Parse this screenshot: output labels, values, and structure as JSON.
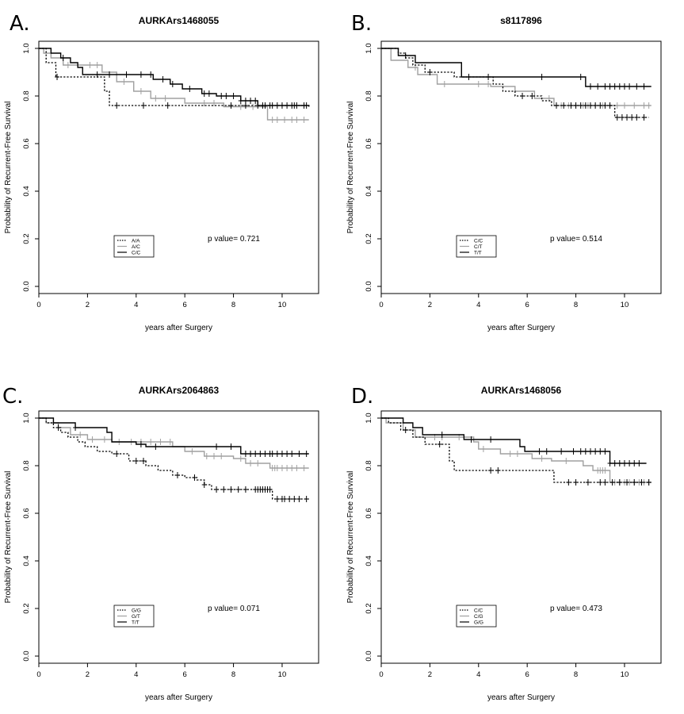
{
  "figure": {
    "ylabel": "Probability of Recurrent-Free Survival",
    "xlabel": "years after Surgery"
  },
  "chart_data": [
    {
      "panel": "A.",
      "type": "line",
      "title": "AURKArs1468055",
      "xlabel": "years after Surgery",
      "ylabel": "Probability of Recurrent-Free Survival",
      "xlim": [
        0,
        11.5
      ],
      "ylim": [
        -0.03,
        1.03
      ],
      "xticks": [
        0,
        2,
        4,
        6,
        8,
        10
      ],
      "yticks": [
        0.0,
        0.2,
        0.4,
        0.6,
        0.8,
        1.0
      ],
      "pvalue_text": "p value= 0.721",
      "legend": {
        "position": "bottom-left",
        "entries": [
          "A/A",
          "A/C",
          "C/C"
        ]
      },
      "series": [
        {
          "name": "A/A",
          "style": "dotted",
          "color": "#000000",
          "steps": [
            [
              0,
              1.0
            ],
            [
              0.3,
              0.94
            ],
            [
              0.7,
              0.88
            ],
            [
              2.7,
              0.82
            ],
            [
              2.9,
              0.76
            ],
            [
              11.1,
              0.755
            ]
          ],
          "censor": [
            0.75,
            3.2,
            4.3,
            5.3,
            7.9,
            8.5,
            10.5,
            11.0
          ]
        },
        {
          "name": "A/C",
          "style": "solid",
          "color": "#a0a0a0",
          "steps": [
            [
              0,
              1.0
            ],
            [
              0.2,
              0.98
            ],
            [
              0.5,
              0.96
            ],
            [
              1.0,
              0.93
            ],
            [
              2.6,
              0.9
            ],
            [
              3.2,
              0.86
            ],
            [
              3.9,
              0.82
            ],
            [
              4.6,
              0.79
            ],
            [
              6.0,
              0.77
            ],
            [
              7.6,
              0.755
            ],
            [
              9.4,
              0.7
            ],
            [
              11.1,
              0.7
            ]
          ],
          "censor": [
            1.2,
            2.1,
            2.4,
            3.5,
            4.2,
            4.8,
            5.2,
            6.8,
            7.2,
            8.3,
            8.8,
            9.6,
            9.8,
            10.1,
            10.4,
            10.6,
            10.9
          ]
        },
        {
          "name": "C/C",
          "style": "solid",
          "color": "#000000",
          "steps": [
            [
              0,
              1.0
            ],
            [
              0.5,
              0.98
            ],
            [
              0.9,
              0.96
            ],
            [
              1.3,
              0.94
            ],
            [
              1.6,
              0.92
            ],
            [
              1.8,
              0.89
            ],
            [
              4.7,
              0.87
            ],
            [
              5.4,
              0.85
            ],
            [
              5.9,
              0.83
            ],
            [
              6.7,
              0.81
            ],
            [
              7.3,
              0.8
            ],
            [
              8.3,
              0.78
            ],
            [
              9.0,
              0.76
            ],
            [
              11.1,
              0.755
            ]
          ],
          "censor": [
            1.0,
            2.4,
            2.9,
            3.6,
            4.2,
            4.6,
            5.1,
            5.5,
            6.2,
            6.8,
            7.0,
            7.5,
            7.7,
            8.0,
            8.3,
            8.5,
            8.7,
            8.9,
            9.0,
            9.2,
            9.3,
            9.5,
            9.6,
            9.8,
            10.0,
            10.2,
            10.4,
            10.6,
            10.9
          ]
        }
      ]
    },
    {
      "panel": "B.",
      "type": "line",
      "title": "s8117896",
      "xlabel": "years after Surgery",
      "ylabel": "Probability of Recurrent-Free Survival",
      "xlim": [
        0,
        11.5
      ],
      "ylim": [
        -0.03,
        1.03
      ],
      "xticks": [
        0,
        2,
        4,
        6,
        8,
        10
      ],
      "yticks": [
        0.0,
        0.2,
        0.4,
        0.6,
        0.8,
        1.0
      ],
      "pvalue_text": "p value= 0.514",
      "legend": {
        "position": "bottom-left",
        "entries": [
          "C/C",
          "C/T",
          "T/T"
        ]
      },
      "series": [
        {
          "name": "C/C",
          "style": "dotted",
          "color": "#000000",
          "steps": [
            [
              0,
              1.0
            ],
            [
              0.7,
              0.98
            ],
            [
              1.0,
              0.96
            ],
            [
              1.3,
              0.93
            ],
            [
              1.8,
              0.9
            ],
            [
              3.0,
              0.88
            ],
            [
              4.6,
              0.85
            ],
            [
              5.0,
              0.82
            ],
            [
              5.5,
              0.8
            ],
            [
              6.6,
              0.78
            ],
            [
              7.0,
              0.76
            ],
            [
              9.6,
              0.71
            ],
            [
              11.0,
              0.71
            ]
          ],
          "censor": [
            2.0,
            3.6,
            5.8,
            6.2,
            7.2,
            7.5,
            7.8,
            8.0,
            8.2,
            8.4,
            8.6,
            8.8,
            9.0,
            9.2,
            9.4,
            9.7,
            9.9,
            10.1,
            10.3,
            10.5,
            10.8
          ]
        },
        {
          "name": "C/T",
          "style": "solid",
          "color": "#a0a0a0",
          "steps": [
            [
              0,
              1.0
            ],
            [
              0.4,
              0.95
            ],
            [
              1.1,
              0.92
            ],
            [
              1.5,
              0.89
            ],
            [
              2.3,
              0.85
            ],
            [
              4.5,
              0.84
            ],
            [
              5.5,
              0.82
            ],
            [
              6.3,
              0.79
            ],
            [
              7.1,
              0.76
            ],
            [
              11.1,
              0.76
            ]
          ],
          "censor": [
            1.4,
            2.6,
            4.0,
            4.4,
            6.9,
            7.4,
            7.7,
            8.0,
            8.3,
            8.5,
            8.8,
            9.1,
            9.4,
            9.7,
            10.0,
            10.4,
            10.8,
            11.0
          ]
        },
        {
          "name": "T/T",
          "style": "solid",
          "color": "#000000",
          "steps": [
            [
              0,
              1.0
            ],
            [
              0.7,
              0.97
            ],
            [
              1.4,
              0.94
            ],
            [
              3.3,
              0.88
            ],
            [
              8.4,
              0.84
            ],
            [
              11.1,
              0.84
            ]
          ],
          "censor": [
            1.0,
            4.4,
            6.6,
            8.2,
            8.6,
            8.9,
            9.2,
            9.4,
            9.6,
            9.8,
            10.0,
            10.2,
            10.5,
            10.8
          ]
        }
      ]
    },
    {
      "panel": "C.",
      "type": "line",
      "title": "AURKArs2064863",
      "xlabel": "years after Surgery",
      "ylabel": "Probability of Recurrent-Free Survival",
      "xlim": [
        0,
        11.5
      ],
      "ylim": [
        -0.03,
        1.03
      ],
      "xticks": [
        0,
        2,
        4,
        6,
        8,
        10
      ],
      "yticks": [
        0.0,
        0.2,
        0.4,
        0.6,
        0.8,
        1.0
      ],
      "pvalue_text": "p value= 0.071",
      "legend": {
        "position": "bottom-left",
        "entries": [
          "G/G",
          "G/T",
          "T/T"
        ]
      },
      "series": [
        {
          "name": "G/G",
          "style": "dotted",
          "color": "#000000",
          "steps": [
            [
              0,
              1.0
            ],
            [
              0.3,
              0.98
            ],
            [
              0.6,
              0.96
            ],
            [
              0.9,
              0.94
            ],
            [
              1.2,
              0.92
            ],
            [
              1.6,
              0.9
            ],
            [
              1.9,
              0.88
            ],
            [
              2.4,
              0.86
            ],
            [
              3.0,
              0.85
            ],
            [
              3.7,
              0.82
            ],
            [
              4.4,
              0.8
            ],
            [
              4.9,
              0.78
            ],
            [
              5.5,
              0.76
            ],
            [
              6.0,
              0.75
            ],
            [
              6.5,
              0.74
            ],
            [
              6.8,
              0.72
            ],
            [
              7.1,
              0.7
            ],
            [
              9.6,
              0.66
            ],
            [
              11.1,
              0.66
            ]
          ],
          "censor": [
            0.8,
            3.2,
            4.0,
            4.3,
            5.7,
            6.4,
            6.8,
            7.3,
            7.6,
            7.9,
            8.2,
            8.5,
            8.9,
            9.0,
            9.1,
            9.2,
            9.3,
            9.4,
            9.5,
            9.8,
            10.0,
            10.1,
            10.3,
            10.5,
            10.7,
            11.0
          ]
        },
        {
          "name": "G/T",
          "style": "solid",
          "color": "#a0a0a0",
          "steps": [
            [
              0,
              1.0
            ],
            [
              0.3,
              0.98
            ],
            [
              0.8,
              0.96
            ],
            [
              1.3,
              0.93
            ],
            [
              2.0,
              0.91
            ],
            [
              3.0,
              0.9
            ],
            [
              5.5,
              0.88
            ],
            [
              6.0,
              0.86
            ],
            [
              6.8,
              0.84
            ],
            [
              8.0,
              0.83
            ],
            [
              8.5,
              0.81
            ],
            [
              9.5,
              0.79
            ],
            [
              11.1,
              0.79
            ]
          ],
          "censor": [
            1.7,
            2.2,
            2.7,
            3.3,
            3.8,
            4.2,
            4.6,
            5.0,
            5.4,
            6.3,
            6.9,
            7.2,
            7.5,
            8.3,
            8.7,
            9.0,
            9.6,
            9.7,
            9.8,
            10.0,
            10.2,
            10.4,
            10.6,
            10.9
          ]
        },
        {
          "name": "T/T",
          "style": "solid",
          "color": "#000000",
          "steps": [
            [
              0,
              1.0
            ],
            [
              0.6,
              0.98
            ],
            [
              1.5,
              0.96
            ],
            [
              2.8,
              0.94
            ],
            [
              3.0,
              0.9
            ],
            [
              4.0,
              0.89
            ],
            [
              4.4,
              0.88
            ],
            [
              8.3,
              0.85
            ],
            [
              11.1,
              0.85
            ]
          ],
          "censor": [
            1.5,
            4.2,
            4.8,
            7.3,
            7.9,
            8.5,
            8.7,
            8.9,
            9.1,
            9.3,
            9.5,
            9.6,
            9.8,
            10.0,
            10.2,
            10.4,
            10.7,
            11.0
          ]
        }
      ]
    },
    {
      "panel": "D.",
      "type": "line",
      "title": "AURKArs1468056",
      "xlabel": "years after Surgery",
      "ylabel": "Probability of Recurrent-Free Survival",
      "xlim": [
        0,
        11.5
      ],
      "ylim": [
        -0.03,
        1.03
      ],
      "xticks": [
        0,
        2,
        4,
        6,
        8,
        10
      ],
      "yticks": [
        0.0,
        0.2,
        0.4,
        0.6,
        0.8,
        1.0
      ],
      "pvalue_text": "p value= 0.473",
      "legend": {
        "position": "bottom-left",
        "entries": [
          "C/C",
          "C/G",
          "G/G"
        ]
      },
      "series": [
        {
          "name": "C/C",
          "style": "dotted",
          "color": "#000000",
          "steps": [
            [
              0,
              1.0
            ],
            [
              0.3,
              0.98
            ],
            [
              0.8,
              0.95
            ],
            [
              1.3,
              0.92
            ],
            [
              1.8,
              0.89
            ],
            [
              2.8,
              0.82
            ],
            [
              3.0,
              0.78
            ],
            [
              7.1,
              0.73
            ],
            [
              11.1,
              0.73
            ]
          ],
          "censor": [
            1.0,
            2.4,
            4.5,
            4.8,
            7.7,
            8.0,
            8.5,
            9.0,
            9.2,
            9.5,
            9.8,
            10.1,
            10.4,
            10.7,
            11.0
          ]
        },
        {
          "name": "C/G",
          "style": "solid",
          "color": "#a0a0a0",
          "steps": [
            [
              0,
              1.0
            ],
            [
              0.2,
              0.98
            ],
            [
              0.9,
              0.95
            ],
            [
              1.4,
              0.92
            ],
            [
              3.8,
              0.9
            ],
            [
              4.0,
              0.87
            ],
            [
              4.9,
              0.85
            ],
            [
              6.2,
              0.83
            ],
            [
              7.0,
              0.82
            ],
            [
              8.3,
              0.8
            ],
            [
              8.7,
              0.78
            ],
            [
              9.4,
              0.73
            ],
            [
              11.1,
              0.73
            ]
          ],
          "censor": [
            2.2,
            2.5,
            3.2,
            4.2,
            5.3,
            5.6,
            6.6,
            7.6,
            8.9,
            9.0,
            9.1,
            9.2,
            9.6,
            9.8,
            10.0,
            10.2,
            10.4,
            10.6,
            10.8,
            11.0
          ]
        },
        {
          "name": "G/G",
          "style": "solid",
          "color": "#000000",
          "steps": [
            [
              0,
              1.0
            ],
            [
              0.9,
              0.98
            ],
            [
              1.3,
              0.96
            ],
            [
              1.7,
              0.93
            ],
            [
              3.4,
              0.91
            ],
            [
              5.7,
              0.88
            ],
            [
              5.9,
              0.86
            ],
            [
              9.4,
              0.81
            ],
            [
              10.9,
              0.81
            ]
          ],
          "censor": [
            2.5,
            3.7,
            4.5,
            6.5,
            6.8,
            7.4,
            7.9,
            8.2,
            8.4,
            8.6,
            8.8,
            9.0,
            9.2,
            9.4,
            9.6,
            9.8,
            10.0,
            10.2,
            10.4,
            10.6
          ]
        }
      ]
    }
  ]
}
